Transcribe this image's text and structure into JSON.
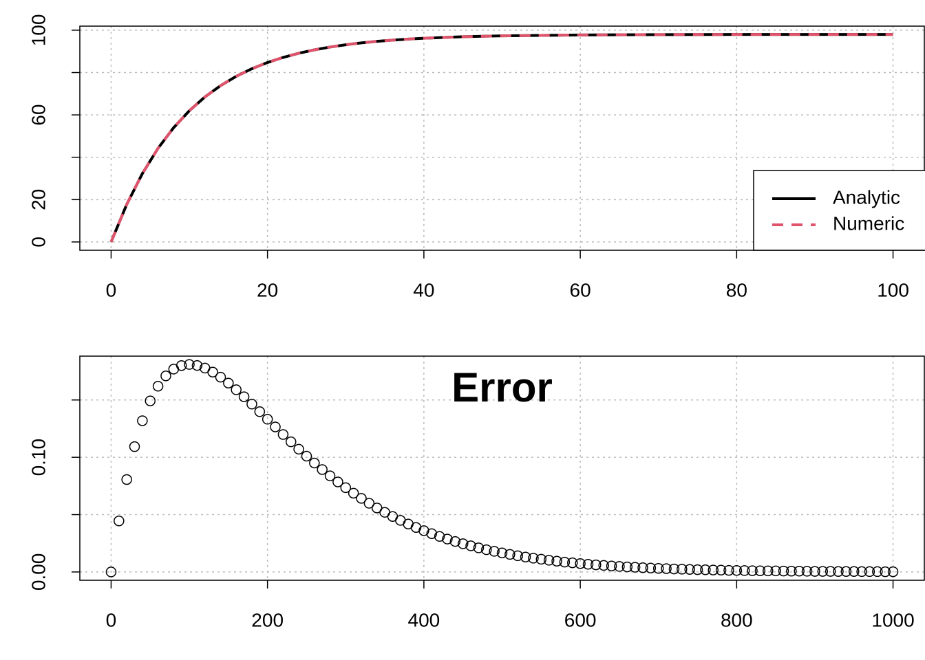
{
  "chart_data": [
    {
      "type": "line",
      "x": [
        0,
        2,
        4,
        6,
        8,
        10,
        12,
        14,
        16,
        18,
        20,
        22,
        24,
        26,
        28,
        30,
        32,
        34,
        36,
        38,
        40,
        45,
        50,
        60,
        70,
        80,
        90,
        100
      ],
      "series": [
        {
          "name": "Analytic",
          "color": "#000000",
          "line_style": "solid",
          "values": [
            0,
            17.76,
            32.31,
            44.22,
            53.97,
            61.95,
            68.48,
            73.83,
            78.21,
            81.8,
            84.74,
            87.14,
            89.11,
            90.72,
            92.04,
            93.12,
            94.01,
            94.73,
            95.32,
            95.81,
            96.2,
            96.91,
            97.34,
            97.76,
            97.91,
            97.97,
            97.99,
            98.0
          ]
        },
        {
          "name": "Numeric",
          "color": "#DF536B",
          "line_style": "dashed",
          "values": [
            0,
            17.76,
            32.31,
            44.22,
            53.97,
            61.95,
            68.48,
            73.83,
            78.21,
            81.8,
            84.74,
            87.14,
            89.11,
            90.72,
            92.04,
            93.12,
            94.01,
            94.73,
            95.32,
            95.81,
            96.2,
            96.91,
            97.34,
            97.76,
            97.91,
            97.97,
            97.99,
            98.0
          ]
        }
      ],
      "xlim": [
        -4,
        104
      ],
      "ylim": [
        -3.92,
        101.92
      ],
      "xticks": [
        0,
        20,
        40,
        60,
        80,
        100
      ],
      "yticks": [
        0,
        20,
        {
          "value": 40,
          "label": null
        },
        60,
        {
          "value": 80,
          "label": null
        },
        100
      ],
      "grid": true,
      "legend": "bottomright"
    },
    {
      "type": "scatter",
      "title": "Error",
      "x": [
        0,
        10,
        20,
        30,
        40,
        50,
        60,
        70,
        80,
        90,
        100,
        110,
        120,
        130,
        140,
        150,
        160,
        170,
        180,
        190,
        200,
        210,
        220,
        230,
        240,
        250,
        260,
        270,
        280,
        290,
        300,
        310,
        320,
        330,
        340,
        350,
        360,
        370,
        380,
        390,
        400,
        410,
        420,
        430,
        440,
        450,
        460,
        470,
        480,
        490,
        500,
        510,
        520,
        530,
        540,
        550,
        560,
        570,
        580,
        590,
        600,
        610,
        620,
        630,
        640,
        650,
        660,
        670,
        680,
        690,
        700,
        710,
        720,
        730,
        740,
        750,
        760,
        770,
        780,
        790,
        800,
        810,
        820,
        830,
        840,
        850,
        860,
        870,
        880,
        890,
        900,
        910,
        920,
        930,
        940,
        950,
        960,
        970,
        980,
        990,
        1000
      ],
      "series": [
        {
          "name": "Error",
          "color": "#000000",
          "values": [
            0,
            0.0445,
            0.0806,
            0.1093,
            0.1319,
            0.1492,
            0.162,
            0.171,
            0.1769,
            0.18,
            0.181,
            0.1801,
            0.1778,
            0.1743,
            0.1699,
            0.1647,
            0.1589,
            0.1528,
            0.1464,
            0.1398,
            0.1332,
            0.1265,
            0.1199,
            0.1135,
            0.1071,
            0.101,
            0.095,
            0.0893,
            0.0838,
            0.0785,
            0.0735,
            0.0687,
            0.0642,
            0.0599,
            0.0558,
            0.052,
            0.0484,
            0.045,
            0.0418,
            0.0388,
            0.036,
            0.0334,
            0.031,
            0.0287,
            0.0266,
            0.0246,
            0.0228,
            0.021,
            0.0194,
            0.018,
            0.0166,
            0.0153,
            0.0141,
            0.013,
            0.012,
            0.0111,
            0.0102,
            0.0094,
            0.0086,
            0.008,
            0.0073,
            0.0067,
            0.0062,
            0.0057,
            0.0052,
            0.0048,
            0.0044,
            0.0041,
            0.0037,
            0.0034,
            0.0031,
            0.0029,
            0.0026,
            0.0024,
            0.0022,
            0.002,
            0.0019,
            0.0017,
            0.0016,
            0.0014,
            0.0013,
            0.0012,
            0.0011,
            0.001,
            0.0009,
            0.0009,
            0.0008,
            0.0007,
            0.0007,
            0.0006,
            0.0005,
            0.0005,
            0.0005,
            0.0004,
            0.0004,
            0.0004,
            0.0003,
            0.0003,
            0.0003,
            0.0002,
            0.0002
          ]
        }
      ],
      "xlim": [
        -40,
        1040
      ],
      "ylim": [
        -0.00724,
        0.18824
      ],
      "xticks": [
        0,
        200,
        400,
        600,
        800,
        1000
      ],
      "yticks": [
        {
          "value": 0,
          "label": "0.00"
        },
        {
          "value": 0.05,
          "label": null
        },
        {
          "value": 0.1,
          "label": "0.10"
        },
        {
          "value": 0.15,
          "label": null
        }
      ],
      "grid": true
    }
  ]
}
